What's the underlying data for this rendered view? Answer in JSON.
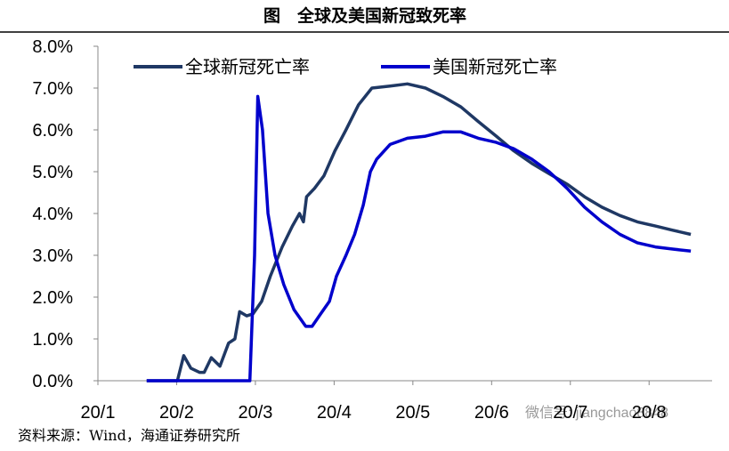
{
  "chart_data": {
    "type": "line",
    "title": "图　全球及美国新冠致死率",
    "source": "资料来源：Wind，海通证券研究所",
    "watermark": "微信号: jiangchao8848",
    "xlim": [
      1,
      8.8
    ],
    "xticks": [
      {
        "value": 1,
        "label": "20/1"
      },
      {
        "value": 2,
        "label": "20/2"
      },
      {
        "value": 3,
        "label": "20/3"
      },
      {
        "value": 4,
        "label": "20/4"
      },
      {
        "value": 5,
        "label": "20/5"
      },
      {
        "value": 6,
        "label": "20/6"
      },
      {
        "value": 7,
        "label": "20/7"
      },
      {
        "value": 8,
        "label": "20/8"
      }
    ],
    "ylim": [
      0,
      8
    ],
    "yticks": [
      {
        "value": 0,
        "label": "0.0%"
      },
      {
        "value": 1,
        "label": "1.0%"
      },
      {
        "value": 2,
        "label": "2.0%"
      },
      {
        "value": 3,
        "label": "3.0%"
      },
      {
        "value": 4,
        "label": "4.0%"
      },
      {
        "value": 5,
        "label": "5.0%"
      },
      {
        "value": 6,
        "label": "6.0%"
      },
      {
        "value": 7,
        "label": "7.0%"
      },
      {
        "value": 8,
        "label": "8.0%"
      }
    ],
    "legend": "top-left",
    "series": [
      {
        "name": "全球新冠死亡率",
        "color": "#1f3864",
        "x": [
          1.62,
          2.01,
          2.09,
          2.18,
          2.29,
          2.35,
          2.44,
          2.55,
          2.66,
          2.74,
          2.8,
          2.89,
          2.97,
          3.08,
          3.19,
          3.34,
          3.47,
          3.56,
          3.61,
          3.65,
          3.75,
          3.87,
          4.01,
          4.15,
          4.31,
          4.48,
          4.71,
          4.93,
          5.16,
          5.38,
          5.61,
          5.83,
          6.06,
          6.28,
          6.51,
          6.73,
          6.96,
          7.18,
          7.4,
          7.63,
          7.85,
          8.08,
          8.3,
          8.53
        ],
        "values": [
          0,
          0,
          0.6,
          0.3,
          0.2,
          0.2,
          0.55,
          0.35,
          0.9,
          1.0,
          1.65,
          1.55,
          1.6,
          1.9,
          2.5,
          3.2,
          3.7,
          4.0,
          3.8,
          4.4,
          4.6,
          4.9,
          5.5,
          6.0,
          6.6,
          7.0,
          7.05,
          7.1,
          7.0,
          6.8,
          6.55,
          6.2,
          5.85,
          5.5,
          5.2,
          4.95,
          4.7,
          4.4,
          4.15,
          3.95,
          3.8,
          3.7,
          3.6,
          3.5
        ]
      },
      {
        "name": "美国新冠死亡率",
        "color": "#0000cc",
        "x": [
          1.62,
          2.93,
          2.99,
          3.03,
          3.09,
          3.16,
          3.25,
          3.36,
          3.49,
          3.64,
          3.72,
          3.83,
          3.94,
          4.03,
          4.15,
          4.26,
          4.37,
          4.46,
          4.54,
          4.71,
          4.93,
          5.16,
          5.38,
          5.61,
          5.83,
          6.06,
          6.28,
          6.51,
          6.73,
          6.96,
          7.18,
          7.4,
          7.63,
          7.85,
          8.08,
          8.3,
          8.53
        ],
        "values": [
          0,
          0,
          3.0,
          6.8,
          6.0,
          4.0,
          3.0,
          2.3,
          1.7,
          1.3,
          1.3,
          1.6,
          1.9,
          2.5,
          3.0,
          3.5,
          4.2,
          5.0,
          5.3,
          5.65,
          5.8,
          5.85,
          5.95,
          5.95,
          5.8,
          5.7,
          5.55,
          5.3,
          5.0,
          4.6,
          4.15,
          3.8,
          3.5,
          3.3,
          3.2,
          3.15,
          3.1
        ]
      }
    ]
  }
}
